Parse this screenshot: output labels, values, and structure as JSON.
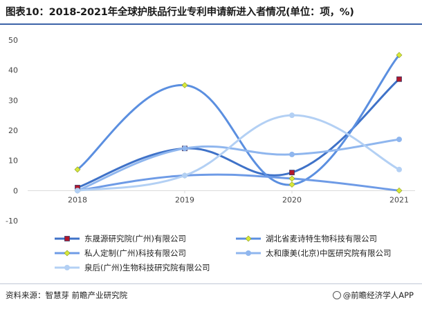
{
  "title": "图表10：2018-2021年全球护肤品行业专利申请新进入者情况(单位：项，%)",
  "source": "资料来源：智慧芽 前瞻产业研究院",
  "brand": "@前瞻经济学人APP",
  "chart_data": {
    "type": "line",
    "x": [
      "2018",
      "2019",
      "2020",
      "2021"
    ],
    "ylim": [
      -10,
      50
    ],
    "yticks": [
      -10,
      0,
      10,
      20,
      30,
      40,
      50
    ],
    "grid": false,
    "legend_position": "bottom",
    "series": [
      {
        "name": "东晟源研究院(广州)有限公司",
        "values": [
          1,
          14,
          6,
          37
        ],
        "color": "#3f72c8",
        "marker": "square",
        "marker_color": "#b2182b"
      },
      {
        "name": "湖北省麦诗特生物科技有限公司",
        "values": [
          7,
          35,
          2,
          45
        ],
        "color": "#5b8fe0",
        "marker": "diamond",
        "marker_color": "#d7e83a"
      },
      {
        "name": "私人定制(广州)科技有限公司",
        "values": [
          0,
          5,
          4,
          0
        ],
        "color": "#6e9be6",
        "marker": "diamond",
        "marker_color": "#d7e83a"
      },
      {
        "name": "太和康美(北京)中医研究院有限公司",
        "values": [
          0,
          14,
          12,
          17
        ],
        "color": "#8fb6ee",
        "marker": "circle",
        "marker_color": "#8fb6ee"
      },
      {
        "name": "泉后(广州)生物科技研究院有限公司",
        "values": [
          0,
          5,
          25,
          7
        ],
        "color": "#b3d0f4",
        "marker": "circle",
        "marker_color": "#b3d0f4"
      }
    ]
  }
}
